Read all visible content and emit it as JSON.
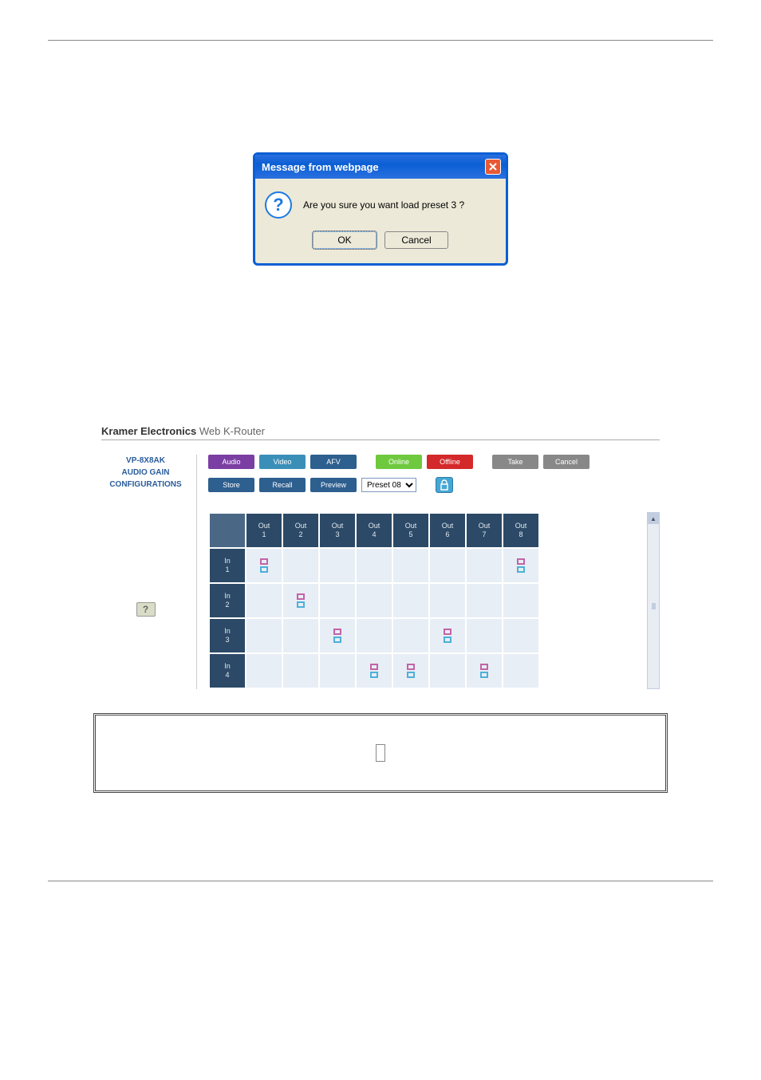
{
  "dialog": {
    "title": "Message from webpage",
    "message": "Are you sure you want load preset 3 ?",
    "ok_label": "OK",
    "cancel_label": "Cancel"
  },
  "router": {
    "brand": "Kramer Electronics",
    "app_name": " Web K-Router",
    "side_links": [
      "VP-8X8AK",
      "AUDIO GAIN",
      "CONFIGURATIONS"
    ],
    "help_label": "?",
    "buttons_row1": {
      "audio": "Audio",
      "video": "Video",
      "afv": "AFV",
      "online": "Online",
      "offline": "Offline",
      "take": "Take",
      "cancel": "Cancel"
    },
    "buttons_row2": {
      "store": "Store",
      "recall": "Recall",
      "preview": "Preview",
      "preset_selected": "Preset 08"
    },
    "matrix": {
      "col_headers": [
        "Out\n1",
        "Out\n2",
        "Out\n3",
        "Out\n4",
        "Out\n5",
        "Out\n6",
        "Out\n7",
        "Out\n8"
      ],
      "row_headers": [
        "In\n1",
        "In\n2",
        "In\n3",
        "In\n4"
      ],
      "crosspoints": [
        [
          true,
          false,
          false,
          false,
          false,
          false,
          false,
          true
        ],
        [
          false,
          true,
          false,
          false,
          false,
          false,
          false,
          false
        ],
        [
          false,
          false,
          true,
          false,
          false,
          true,
          false,
          false
        ],
        [
          false,
          false,
          false,
          true,
          true,
          false,
          true,
          false
        ]
      ],
      "colors": {
        "header_bg": "#2c4a67",
        "header_fg": "#e0e8ef",
        "cell_bg": "#e8eef5",
        "cross_top": "#c263a8",
        "cross_bottom": "#4db0d8"
      }
    }
  },
  "layout": {
    "page_bg": "#ffffff",
    "rule_color": "#888888"
  }
}
